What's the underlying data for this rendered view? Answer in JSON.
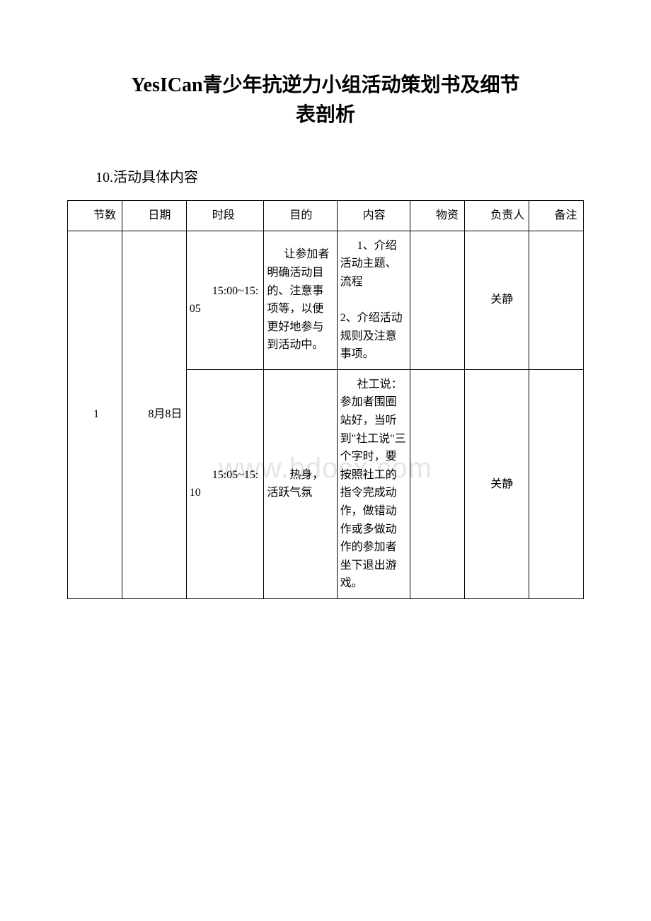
{
  "title_line1": "YesICan青少年抗逆力小组活动策划书及细节",
  "title_line2": "表剖析",
  "section_label": "10.活动具体内容",
  "watermark": "www.bdocx.com",
  "headers": {
    "sessions": "节数",
    "date": "日期",
    "time": "时段",
    "goal": "目的",
    "content": "内容",
    "material": "物资",
    "owner": "负责人",
    "note": "备注"
  },
  "rows": {
    "session": "1",
    "date": "8月8日",
    "r1": {
      "time": "15:00~15:05",
      "goal": "让参加者明确活动目的、注意事项等，以便更好地参与到活动中。",
      "content": "1、介绍活动主题、流程\n\n2、介绍活动规则及注意事项。",
      "material": "",
      "owner": "关静",
      "note": ""
    },
    "r2": {
      "time": "15:05~15:10",
      "goal": "热身，活跃气氛",
      "content": "社工说：参加者围圈站好，当听到\"社工说\"三个字时，要按照社工的指令完成动作，做错动作或多做动作的参加者坐下退出游戏。",
      "material": "",
      "owner": "关静",
      "note": ""
    }
  }
}
